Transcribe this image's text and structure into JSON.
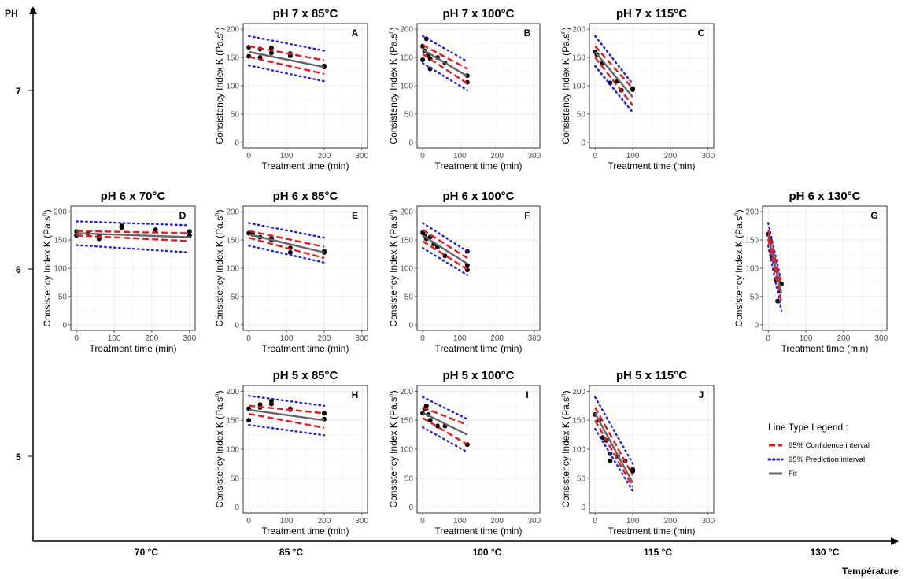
{
  "figure": {
    "y_axis_label": "PH",
    "x_axis_label": "Température",
    "ph_ticks": [
      "7",
      "6",
      "5"
    ],
    "temp_ticks": [
      "70 °C",
      "85 °C",
      "100 °C",
      "115 °C",
      "130 °C"
    ]
  },
  "legend": {
    "title": "Line Type Legend :",
    "items": [
      {
        "label": "95% Confidence interval",
        "color": "#e41a1c",
        "style": "dashed"
      },
      {
        "label": "95% Prediction interval",
        "color": "#1f1fe6",
        "style": "dotted"
      },
      {
        "label": "Fit",
        "color": "#666666",
        "style": "solid"
      }
    ]
  },
  "panel_common": {
    "xlabel": "Treatment time (min)",
    "ylabel_main": "Consistency Index K (Pa.s",
    "ylabel_sup": "n",
    "ylabel_end": ")",
    "yticks": [
      "0",
      "50",
      "100",
      "150",
      "200"
    ],
    "xticks": [
      "0",
      "100",
      "200",
      "300"
    ]
  },
  "chart_data": [
    {
      "type": "scatter",
      "letter": "A",
      "title": "pH 7 x 85°C",
      "xlim": [
        0,
        300
      ],
      "ylim": [
        0,
        200
      ],
      "points": [
        [
          0,
          152
        ],
        [
          0,
          168
        ],
        [
          30,
          165
        ],
        [
          30,
          150
        ],
        [
          60,
          167
        ],
        [
          60,
          158
        ],
        [
          110,
          157
        ],
        [
          110,
          153
        ],
        [
          200,
          135
        ],
        [
          200,
          133
        ]
      ],
      "fit": [
        [
          0,
          160
        ],
        [
          200,
          133
        ]
      ],
      "ci_upper": [
        [
          0,
          170
        ],
        [
          200,
          145
        ]
      ],
      "ci_lower": [
        [
          0,
          151
        ],
        [
          200,
          121
        ]
      ],
      "pi_upper": [
        [
          0,
          188
        ],
        [
          200,
          162
        ]
      ],
      "pi_lower": [
        [
          0,
          136
        ],
        [
          200,
          108
        ]
      ]
    },
    {
      "type": "scatter",
      "letter": "B",
      "title": "pH 7 x 100°C",
      "xlim": [
        0,
        300
      ],
      "ylim": [
        0,
        200
      ],
      "points": [
        [
          0,
          170
        ],
        [
          0,
          146
        ],
        [
          5,
          162
        ],
        [
          10,
          183
        ],
        [
          15,
          155
        ],
        [
          20,
          148
        ],
        [
          20,
          130
        ],
        [
          40,
          150
        ],
        [
          60,
          140
        ],
        [
          120,
          118
        ],
        [
          120,
          106
        ]
      ],
      "fit": [
        [
          0,
          164
        ],
        [
          120,
          117
        ]
      ],
      "ci_upper": [
        [
          0,
          172
        ],
        [
          120,
          130
        ]
      ],
      "ci_lower": [
        [
          0,
          156
        ],
        [
          120,
          104
        ]
      ],
      "pi_upper": [
        [
          0,
          188
        ],
        [
          120,
          143
        ]
      ],
      "pi_lower": [
        [
          0,
          140
        ],
        [
          120,
          92
        ]
      ]
    },
    {
      "type": "scatter",
      "letter": "C",
      "title": "pH 7 x 115°C",
      "xlim": [
        0,
        300
      ],
      "ylim": [
        0,
        200
      ],
      "points": [
        [
          0,
          160
        ],
        [
          5,
          155
        ],
        [
          20,
          140
        ],
        [
          40,
          105
        ],
        [
          60,
          108
        ],
        [
          70,
          92
        ],
        [
          100,
          95
        ],
        [
          100,
          93
        ]
      ],
      "fit": [
        [
          0,
          160
        ],
        [
          100,
          80
        ]
      ],
      "ci_upper": [
        [
          0,
          170
        ],
        [
          100,
          95
        ]
      ],
      "ci_lower": [
        [
          0,
          150
        ],
        [
          100,
          65
        ]
      ],
      "pi_upper": [
        [
          0,
          188
        ],
        [
          100,
          103
        ]
      ],
      "pi_lower": [
        [
          0,
          135
        ],
        [
          100,
          53
        ]
      ]
    },
    {
      "type": "scatter",
      "letter": "D",
      "title": "pH 6 x 70°C",
      "xlim": [
        0,
        300
      ],
      "ylim": [
        0,
        200
      ],
      "points": [
        [
          0,
          165
        ],
        [
          0,
          158
        ],
        [
          30,
          162
        ],
        [
          60,
          157
        ],
        [
          60,
          152
        ],
        [
          120,
          172
        ],
        [
          120,
          175
        ],
        [
          210,
          168
        ],
        [
          300,
          165
        ],
        [
          300,
          158
        ]
      ],
      "fit": [
        [
          0,
          162
        ],
        [
          300,
          155
        ]
      ],
      "ci_upper": [
        [
          0,
          166
        ],
        [
          300,
          162
        ]
      ],
      "ci_lower": [
        [
          0,
          158
        ],
        [
          300,
          148
        ]
      ],
      "pi_upper": [
        [
          0,
          183
        ],
        [
          300,
          176
        ]
      ],
      "pi_lower": [
        [
          0,
          141
        ],
        [
          300,
          128
        ]
      ]
    },
    {
      "type": "scatter",
      "letter": "E",
      "title": "pH 6 x 85°C",
      "xlim": [
        0,
        300
      ],
      "ylim": [
        0,
        200
      ],
      "points": [
        [
          0,
          162
        ],
        [
          10,
          160
        ],
        [
          30,
          155
        ],
        [
          60,
          153
        ],
        [
          60,
          150
        ],
        [
          110,
          128
        ],
        [
          110,
          136
        ],
        [
          200,
          130
        ],
        [
          200,
          128
        ]
      ],
      "fit": [
        [
          0,
          160
        ],
        [
          200,
          128
        ]
      ],
      "ci_upper": [
        [
          0,
          166
        ],
        [
          200,
          138
        ]
      ],
      "ci_lower": [
        [
          0,
          154
        ],
        [
          200,
          118
        ]
      ],
      "pi_upper": [
        [
          0,
          180
        ],
        [
          200,
          154
        ]
      ],
      "pi_lower": [
        [
          0,
          140
        ],
        [
          200,
          110
        ]
      ]
    },
    {
      "type": "scatter",
      "letter": "F",
      "title": "pH 6 x 100°C",
      "xlim": [
        0,
        300
      ],
      "ylim": [
        0,
        200
      ],
      "points": [
        [
          0,
          163
        ],
        [
          5,
          158
        ],
        [
          10,
          152
        ],
        [
          20,
          155
        ],
        [
          30,
          143
        ],
        [
          40,
          138
        ],
        [
          60,
          122
        ],
        [
          120,
          130
        ],
        [
          120,
          105
        ],
        [
          120,
          97
        ]
      ],
      "fit": [
        [
          0,
          158
        ],
        [
          120,
          108
        ]
      ],
      "ci_upper": [
        [
          0,
          168
        ],
        [
          120,
          118
        ]
      ],
      "ci_lower": [
        [
          0,
          148
        ],
        [
          120,
          98
        ]
      ],
      "pi_upper": [
        [
          0,
          180
        ],
        [
          120,
          130
        ]
      ],
      "pi_lower": [
        [
          0,
          136
        ],
        [
          120,
          88
        ]
      ]
    },
    {
      "type": "scatter",
      "letter": "G",
      "title": "pH 6 x 130°C",
      "xlim": [
        0,
        300
      ],
      "ylim": [
        0,
        200
      ],
      "points": [
        [
          0,
          160
        ],
        [
          5,
          150
        ],
        [
          10,
          120
        ],
        [
          15,
          115
        ],
        [
          20,
          80
        ],
        [
          25,
          42
        ],
        [
          30,
          60
        ],
        [
          35,
          72
        ]
      ],
      "fit": [
        [
          0,
          160
        ],
        [
          35,
          55
        ]
      ],
      "ci_upper": [
        [
          0,
          168
        ],
        [
          35,
          70
        ]
      ],
      "ci_lower": [
        [
          0,
          152
        ],
        [
          35,
          40
        ]
      ],
      "pi_upper": [
        [
          0,
          180
        ],
        [
          35,
          75
        ]
      ],
      "pi_lower": [
        [
          0,
          140
        ],
        [
          35,
          25
        ]
      ]
    },
    {
      "type": "scatter",
      "letter": "H",
      "title": "pH 5 x 85°C",
      "xlim": [
        0,
        300
      ],
      "ylim": [
        0,
        200
      ],
      "points": [
        [
          0,
          170
        ],
        [
          0,
          150
        ],
        [
          30,
          177
        ],
        [
          30,
          172
        ],
        [
          60,
          183
        ],
        [
          60,
          178
        ],
        [
          110,
          170
        ],
        [
          110,
          168
        ],
        [
          200,
          162
        ],
        [
          200,
          152
        ]
      ],
      "fit": [
        [
          0,
          168
        ],
        [
          200,
          150
        ]
      ],
      "ci_upper": [
        [
          0,
          175
        ],
        [
          200,
          162
        ]
      ],
      "ci_lower": [
        [
          0,
          161
        ],
        [
          200,
          137
        ]
      ],
      "pi_upper": [
        [
          0,
          192
        ],
        [
          200,
          175
        ]
      ],
      "pi_lower": [
        [
          0,
          142
        ],
        [
          200,
          124
        ]
      ]
    },
    {
      "type": "scatter",
      "letter": "I",
      "title": "pH 5 x 100°C",
      "xlim": [
        0,
        300
      ],
      "ylim": [
        0,
        200
      ],
      "points": [
        [
          0,
          162
        ],
        [
          5,
          170
        ],
        [
          10,
          175
        ],
        [
          15,
          160
        ],
        [
          20,
          150
        ],
        [
          40,
          140
        ],
        [
          60,
          140
        ],
        [
          120,
          108
        ]
      ],
      "fit": [
        [
          0,
          163
        ],
        [
          120,
          125
        ]
      ],
      "ci_upper": [
        [
          0,
          172
        ],
        [
          120,
          142
        ]
      ],
      "ci_lower": [
        [
          0,
          154
        ],
        [
          120,
          108
        ]
      ],
      "pi_upper": [
        [
          0,
          190
        ],
        [
          120,
          152
        ]
      ],
      "pi_lower": [
        [
          0,
          138
        ],
        [
          120,
          95
        ]
      ]
    },
    {
      "type": "scatter",
      "letter": "J",
      "title": "pH 5 x 115°C",
      "xlim": [
        0,
        300
      ],
      "ylim": [
        0,
        200
      ],
      "points": [
        [
          0,
          160
        ],
        [
          10,
          150
        ],
        [
          20,
          120
        ],
        [
          30,
          115
        ],
        [
          40,
          80
        ],
        [
          40,
          92
        ],
        [
          60,
          88
        ],
        [
          80,
          80
        ],
        [
          100,
          65
        ],
        [
          100,
          62
        ]
      ],
      "fit": [
        [
          0,
          162
        ],
        [
          100,
          42
        ]
      ],
      "ci_upper": [
        [
          0,
          172
        ],
        [
          100,
          55
        ]
      ],
      "ci_lower": [
        [
          0,
          150
        ],
        [
          100,
          35
        ]
      ],
      "pi_upper": [
        [
          0,
          190
        ],
        [
          100,
          75
        ]
      ],
      "pi_lower": [
        [
          0,
          135
        ],
        [
          100,
          28
        ]
      ]
    }
  ]
}
